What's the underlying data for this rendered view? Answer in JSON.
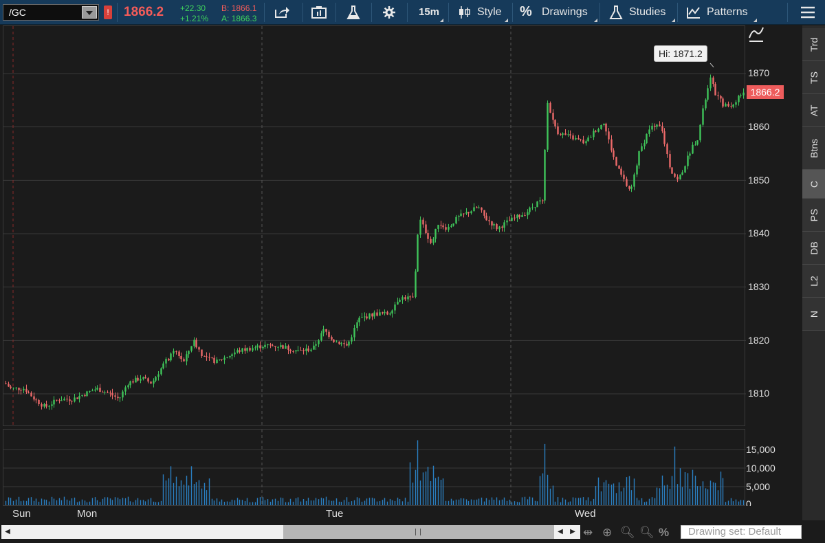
{
  "toolbar": {
    "symbol": "/GC",
    "last_price": "1866.2",
    "change_abs": "+22.30",
    "change_pct": "+1.21%",
    "bid": "B: 1866.1",
    "ask": "A: 1866.3",
    "timeframe": "15m",
    "style_label": "Style",
    "drawings_label": "Drawings",
    "studies_label": "Studies",
    "patterns_label": "Patterns"
  },
  "price_axis": {
    "ticks": [
      "1870",
      "1860",
      "1850",
      "1840",
      "1830",
      "1820",
      "1810"
    ],
    "current_price_tag": "1866.2",
    "hi_label": "Hi: 1871.2"
  },
  "volume_axis": {
    "ticks": [
      "15,000",
      "10,000",
      "5,000",
      "0"
    ]
  },
  "time_axis": {
    "days": [
      "Sun",
      "Mon",
      "Tue",
      "Wed"
    ]
  },
  "side_tabs": [
    "Trd",
    "TS",
    "AT",
    "Btns",
    "C",
    "PS",
    "DB",
    "L2",
    "N"
  ],
  "active_side_tab": "C",
  "bottom_bar": {
    "drawing_set": "Drawing set: Default"
  },
  "colors": {
    "up": "#3fc55a",
    "down": "#ee6a6a",
    "volume": "#2a7fc1",
    "grid": "#3a3a3a",
    "toolbar_bg": "#163a5a"
  },
  "chart_data": {
    "type": "candlestick",
    "symbol": "/GC",
    "interval": "15m",
    "ylim": [
      1804,
      1878
    ],
    "volume_ylim": [
      0,
      17500
    ],
    "key_points": [
      {
        "x": "Sun",
        "close": 1812
      },
      {
        "x": "Mon",
        "close": 1809
      },
      {
        "x": "Mon",
        "close": 1820
      },
      {
        "x": "Tue",
        "close": 1818
      },
      {
        "x": "Tue",
        "close": 1828
      },
      {
        "x": "Tue",
        "close": 1843
      },
      {
        "x": "Tue",
        "close": 1845
      },
      {
        "x": "Wed",
        "close": 1866
      },
      {
        "x": "Wed",
        "close": 1847
      },
      {
        "x": "Wed",
        "close": 1871.2
      },
      {
        "x": "Wed",
        "close": 1866.2
      }
    ],
    "high": 1871.2,
    "last": 1866.2
  }
}
